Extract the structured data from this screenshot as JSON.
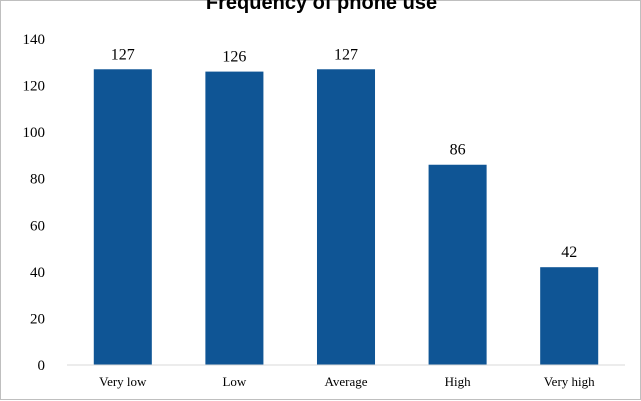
{
  "chart_data": {
    "type": "bar",
    "title": "Frequency of phone use",
    "categories": [
      "Very low",
      "Low",
      "Average",
      "High",
      "Very high"
    ],
    "values": [
      127,
      126,
      127,
      86,
      42
    ],
    "data_labels": [
      "127",
      "126",
      "127",
      "86",
      "42"
    ],
    "xlabel": "",
    "ylabel": "",
    "ylim": [
      0,
      140
    ],
    "y_ticks": [
      0,
      20,
      40,
      60,
      80,
      100,
      120,
      140
    ],
    "grid": false,
    "legend": "none",
    "bar_color": "#0f5595"
  }
}
